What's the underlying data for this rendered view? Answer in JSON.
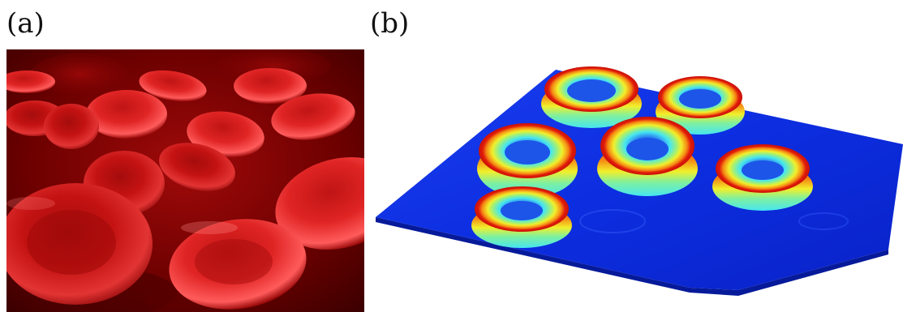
{
  "panels": {
    "a": {
      "label": "(a)"
    },
    "b": {
      "label": "(b)"
    }
  },
  "colors": {
    "blood_background": "#6b0000",
    "cell_red": "#c41212",
    "cell_highlight": "#ff5b5b",
    "surface_blue": "#0c2ee0",
    "ring_red": "#e01a0a",
    "ring_yellow": "#f2ef2a",
    "ring_cyan": "#46e6f0"
  }
}
